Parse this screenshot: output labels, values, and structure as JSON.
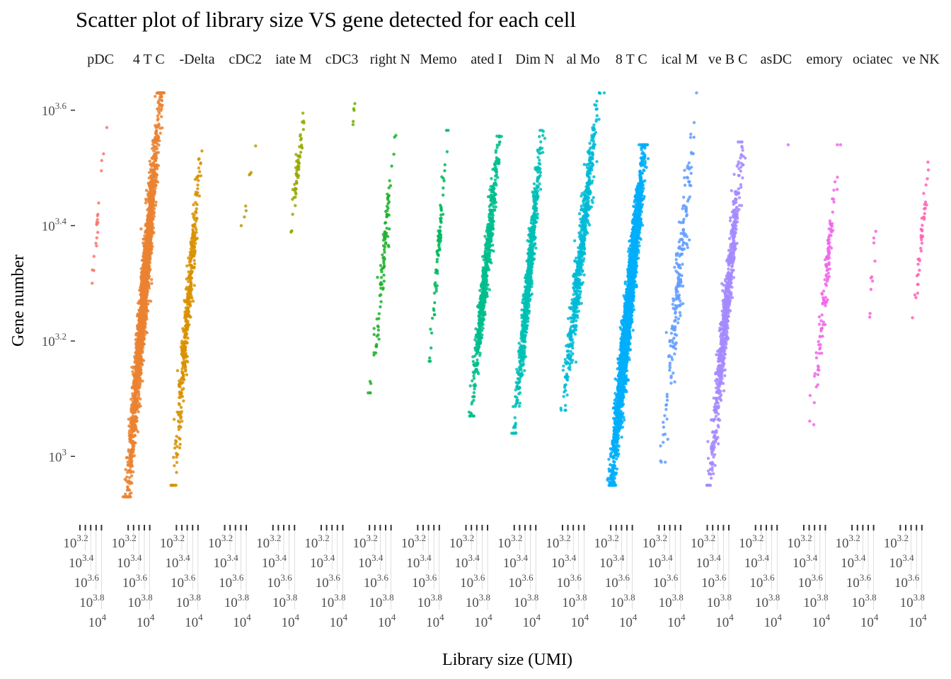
{
  "chart_data": {
    "type": "scatter",
    "title": "Scatter plot of library size VS gene detected for each cell",
    "xlabel": "Library size (UMI)",
    "ylabel": "Gene number",
    "x_scale": "log10",
    "y_scale": "log10",
    "xlim_log10": [
      3.07,
      4.86
    ],
    "ylim_log10": [
      2.89,
      3.65
    ],
    "x_ticks_log10": [
      3.2,
      3.4,
      3.6,
      3.8,
      4.0
    ],
    "x_tick_base": "10",
    "x_tick_exponents": [
      "3.2",
      "3.4",
      "3.6",
      "3.8",
      "4"
    ],
    "y_ticks_log10": [
      3.0,
      3.2,
      3.4,
      3.6
    ],
    "y_tick_base": "10",
    "y_tick_exponents": [
      "3",
      "3.2",
      "3.4",
      "3.6"
    ],
    "grid": false,
    "legend": "none",
    "facets": [
      {
        "label": "pDC",
        "color": "#F8766D",
        "n": 20,
        "gene_log10": [
          3.276,
          3.57
        ],
        "umi_log10": [
          3.6,
          4.17
        ]
      },
      {
        "label": "4 T C",
        "color": "#EA8331",
        "n": 2000,
        "gene_log10": [
          2.93,
          3.63
        ],
        "umi_log10": [
          3.18,
          4.39
        ]
      },
      {
        "label": "-Delta",
        "color": "#D89000",
        "n": 400,
        "gene_log10": [
          2.95,
          3.535
        ],
        "umi_log10": [
          3.1,
          4.1
        ]
      },
      {
        "label": "cDC2",
        "color": "#B89D00",
        "n": 8,
        "gene_log10": [
          3.37,
          3.56
        ],
        "umi_log10": [
          3.81,
          4.39
        ]
      },
      {
        "label": "iate M",
        "color": "#95A900",
        "n": 60,
        "gene_log10": [
          3.38,
          3.62
        ],
        "umi_log10": [
          3.83,
          4.41
        ]
      },
      {
        "label": "cDC3",
        "color": "#6BB100",
        "n": 5,
        "gene_log10": [
          3.555,
          3.62
        ],
        "umi_log10": [
          4.33,
          4.46
        ]
      },
      {
        "label": "right N",
        "color": "#1DB32A",
        "n": 100,
        "gene_log10": [
          3.11,
          3.57
        ],
        "umi_log10": [
          3.28,
          4.15
        ]
      },
      {
        "label": "Memo",
        "color": "#00BA5E",
        "n": 80,
        "gene_log10": [
          3.165,
          3.565
        ],
        "umi_log10": [
          3.65,
          4.31
        ]
      },
      {
        "label": "ated I",
        "color": "#00BD8D",
        "n": 600,
        "gene_log10": [
          3.07,
          3.555
        ],
        "umi_log10": [
          3.39,
          4.44
        ]
      },
      {
        "label": "Dim N",
        "color": "#00BFB5",
        "n": 700,
        "gene_log10": [
          3.04,
          3.565
        ],
        "umi_log10": [
          3.23,
          4.23
        ]
      },
      {
        "label": "al Mo",
        "color": "#00BBD6",
        "n": 600,
        "gene_log10": [
          3.08,
          3.63
        ],
        "umi_log10": [
          3.23,
          4.54
        ]
      },
      {
        "label": "8 T C",
        "color": "#00AEFA",
        "n": 3000,
        "gene_log10": [
          2.95,
          3.54
        ],
        "umi_log10": [
          3.23,
          4.44
        ]
      },
      {
        "label": "ical M",
        "color": "#619CFF",
        "n": 200,
        "gene_log10": [
          2.99,
          3.63
        ],
        "umi_log10": [
          3.31,
          4.57
        ]
      },
      {
        "label": "ve B C",
        "color": "#A58AFF",
        "n": 700,
        "gene_log10": [
          2.95,
          3.545
        ],
        "umi_log10": [
          3.28,
          4.49
        ]
      },
      {
        "label": "asDC",
        "color": "#D277FF",
        "n": 1,
        "gene_log10": [
          3.54,
          3.54
        ],
        "umi_log10": [
          4.41,
          4.41
        ]
      },
      {
        "label": "emory",
        "color": "#F066EA",
        "n": 120,
        "gene_log10": [
          3.04,
          3.54
        ],
        "umi_log10": [
          3.49,
          4.49
        ]
      },
      {
        "label": "ociatec",
        "color": "#FB61D7",
        "n": 10,
        "gene_log10": [
          3.175,
          3.48
        ],
        "umi_log10": [
          3.7,
          4.23
        ]
      },
      {
        "label": "ve NK",
        "color": "#FF62B4",
        "n": 40,
        "gene_log10": [
          3.22,
          3.51
        ],
        "umi_log10": [
          3.67,
          4.25
        ]
      }
    ]
  }
}
